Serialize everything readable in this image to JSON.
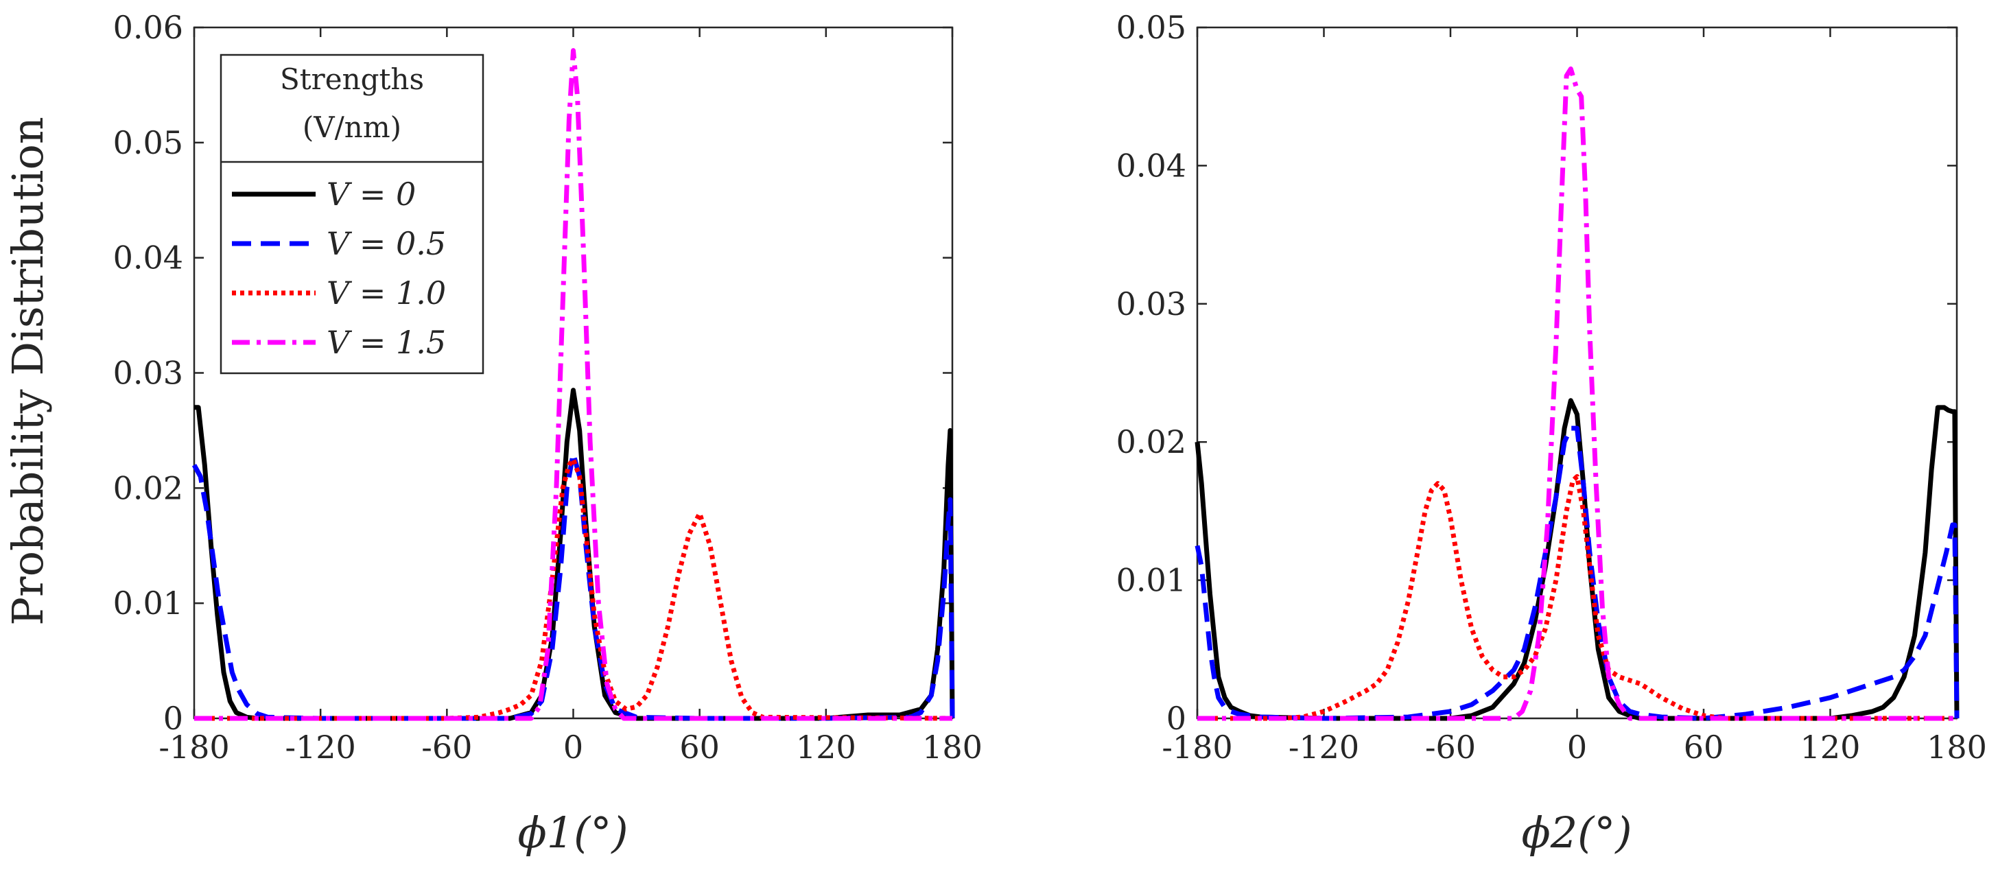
{
  "figure": {
    "ylabel": "Probability Distribution",
    "legend": {
      "title_line1": "Strengths",
      "title_line2": "(V/nm)",
      "entries": [
        {
          "label": "V = 0",
          "color": "#000000",
          "style": "solid"
        },
        {
          "label": "V = 0.5",
          "color": "#0000ff",
          "style": "dashed"
        },
        {
          "label": "V = 1.0",
          "color": "#ff0000",
          "style": "dotted"
        },
        {
          "label": "V = 1.5",
          "color": "#ff00ff",
          "style": "dashdot"
        }
      ]
    }
  },
  "chart_data": [
    {
      "type": "line",
      "title": "",
      "xlabel": "ϕ1(°)",
      "ylabel": "Probability Distribution",
      "xlim": [
        -180,
        180
      ],
      "ylim": [
        0,
        0.06
      ],
      "xticks": [
        -180,
        -120,
        -60,
        0,
        60,
        120,
        180
      ],
      "xtick_labels": [
        "-180",
        "-120",
        "-60",
        "0",
        "60",
        "120",
        "180"
      ],
      "yticks": [
        0,
        0.01,
        0.02,
        0.03,
        0.04,
        0.05,
        0.06
      ],
      "ytick_labels": [
        "0",
        "0.01",
        "0.02",
        "0.03",
        "0.04",
        "0.05",
        "0.06"
      ],
      "series": [
        {
          "name": "V = 0",
          "color": "#000000",
          "style": "solid",
          "x": [
            -180,
            -178,
            -175,
            -172,
            -169,
            -166,
            -163,
            -160,
            -155,
            -150,
            -120,
            -60,
            -30,
            -20,
            -15,
            -10,
            -6,
            -3,
            0,
            3,
            6,
            10,
            15,
            20,
            30,
            60,
            120,
            140,
            155,
            165,
            170,
            173,
            176,
            178,
            179,
            180
          ],
          "y": [
            0.027,
            0.027,
            0.022,
            0.015,
            0.009,
            0.004,
            0.0015,
            0.0005,
            0.0001,
            0,
            0,
            0,
            0,
            0.0005,
            0.002,
            0.007,
            0.016,
            0.024,
            0.0285,
            0.025,
            0.017,
            0.008,
            0.002,
            0.0005,
            0,
            0,
            0,
            0.0003,
            0.0003,
            0.0008,
            0.002,
            0.006,
            0.013,
            0.022,
            0.025,
            0
          ]
        },
        {
          "name": "V = 0.5",
          "color": "#0000ff",
          "style": "dashed",
          "x": [
            -180,
            -177,
            -174,
            -171,
            -168,
            -165,
            -162,
            -159,
            -155,
            -150,
            -145,
            -120,
            -60,
            -30,
            -20,
            -15,
            -10,
            -6,
            -3,
            0,
            3,
            6,
            10,
            15,
            20,
            30,
            60,
            120,
            160,
            165,
            170,
            173,
            176,
            178,
            179,
            180
          ],
          "y": [
            0.022,
            0.021,
            0.018,
            0.014,
            0.01,
            0.007,
            0.004,
            0.0025,
            0.0012,
            0.0004,
            0.0001,
            0,
            0,
            0,
            0.0004,
            0.0015,
            0.006,
            0.013,
            0.02,
            0.023,
            0.021,
            0.015,
            0.008,
            0.003,
            0.0008,
            0.0001,
            0,
            0,
            0.0001,
            0.0005,
            0.002,
            0.005,
            0.011,
            0.017,
            0.019,
            0
          ]
        },
        {
          "name": "V = 1.0",
          "color": "#ff0000",
          "style": "dotted",
          "x": [
            -180,
            -60,
            -45,
            -40,
            -35,
            -30,
            -25,
            -20,
            -15,
            -10,
            -5,
            -2,
            0,
            3,
            6,
            10,
            15,
            20,
            25,
            30,
            35,
            40,
            45,
            50,
            55,
            60,
            65,
            70,
            75,
            80,
            85,
            90,
            180
          ],
          "y": [
            0,
            0,
            0.0001,
            0.0003,
            0.0005,
            0.0008,
            0.0012,
            0.002,
            0.005,
            0.012,
            0.02,
            0.022,
            0.0225,
            0.021,
            0.016,
            0.009,
            0.004,
            0.0015,
            0.0008,
            0.001,
            0.002,
            0.0045,
            0.008,
            0.0125,
            0.016,
            0.0178,
            0.015,
            0.01,
            0.005,
            0.0018,
            0.0005,
            0.0001,
            0
          ]
        },
        {
          "name": "V = 1.5",
          "color": "#ff00ff",
          "style": "dashdot",
          "x": [
            -180,
            -20,
            -16,
            -12,
            -8,
            -5,
            -2,
            0,
            2,
            5,
            8,
            12,
            16,
            20,
            24,
            180
          ],
          "y": [
            0,
            0,
            0.001,
            0.006,
            0.02,
            0.036,
            0.052,
            0.058,
            0.054,
            0.04,
            0.024,
            0.01,
            0.003,
            0.0008,
            0,
            0
          ]
        }
      ]
    },
    {
      "type": "line",
      "title": "",
      "xlabel": "ϕ2(°)",
      "ylabel": "",
      "xlim": [
        -180,
        180
      ],
      "ylim": [
        0,
        0.05
      ],
      "xticks": [
        -180,
        -120,
        -60,
        0,
        60,
        120,
        180
      ],
      "xtick_labels": [
        "-180",
        "-120",
        "-60",
        "0",
        "60",
        "120",
        "180"
      ],
      "yticks": [
        0,
        0.01,
        0.02,
        0.03,
        0.04,
        0.05
      ],
      "ytick_labels": [
        "0",
        "0.01",
        "0.02",
        "0.03",
        "0.04",
        "0.05"
      ],
      "series": [
        {
          "name": "V = 0",
          "color": "#000000",
          "style": "solid",
          "x": [
            -180,
            -178,
            -176,
            -174,
            -172,
            -170,
            -167,
            -164,
            -160,
            -155,
            -150,
            -120,
            -60,
            -50,
            -40,
            -30,
            -25,
            -20,
            -15,
            -10,
            -6,
            -3,
            0,
            3,
            6,
            10,
            15,
            20,
            25,
            30,
            60,
            100,
            120,
            130,
            140,
            145,
            150,
            155,
            160,
            165,
            168,
            171,
            174,
            176,
            178,
            179,
            180
          ],
          "y": [
            0.02,
            0.017,
            0.013,
            0.009,
            0.006,
            0.003,
            0.0015,
            0.0008,
            0.0005,
            0.0002,
            0.0001,
            0,
            0,
            0.0002,
            0.0008,
            0.0025,
            0.004,
            0.007,
            0.011,
            0.016,
            0.021,
            0.023,
            0.022,
            0.017,
            0.011,
            0.005,
            0.0015,
            0.0005,
            0.0002,
            0,
            0,
            0,
            0,
            0.0002,
            0.0005,
            0.0008,
            0.0015,
            0.003,
            0.006,
            0.012,
            0.018,
            0.0225,
            0.0225,
            0.0223,
            0.0222,
            0.0222,
            0
          ]
        },
        {
          "name": "V = 0.5",
          "color": "#0000ff",
          "style": "dashed",
          "x": [
            -180,
            -178,
            -176,
            -174,
            -172,
            -170,
            -167,
            -164,
            -160,
            -155,
            -150,
            -120,
            -80,
            -60,
            -50,
            -40,
            -30,
            -25,
            -20,
            -15,
            -10,
            -6,
            -3,
            0,
            3,
            6,
            10,
            15,
            20,
            25,
            30,
            40,
            60,
            80,
            100,
            120,
            130,
            140,
            150,
            155,
            160,
            165,
            170,
            175,
            178,
            179,
            180
          ],
          "y": [
            0.0125,
            0.011,
            0.008,
            0.005,
            0.003,
            0.0015,
            0.0008,
            0.0005,
            0.0003,
            0.0002,
            0.0001,
            0,
            0.0001,
            0.0005,
            0.001,
            0.002,
            0.0035,
            0.005,
            0.008,
            0.012,
            0.016,
            0.02,
            0.021,
            0.021,
            0.017,
            0.012,
            0.007,
            0.003,
            0.0012,
            0.0005,
            0.0003,
            0.0001,
            0,
            0.0003,
            0.0008,
            0.0015,
            0.002,
            0.0025,
            0.003,
            0.0035,
            0.0045,
            0.006,
            0.009,
            0.012,
            0.014,
            0.014,
            0
          ]
        },
        {
          "name": "V = 1.0",
          "color": "#ff0000",
          "style": "dotted",
          "x": [
            -180,
            -140,
            -130,
            -120,
            -110,
            -100,
            -95,
            -90,
            -85,
            -80,
            -75,
            -72,
            -69,
            -66,
            -63,
            -60,
            -55,
            -50,
            -45,
            -40,
            -35,
            -30,
            -25,
            -20,
            -15,
            -10,
            -5,
            -2,
            0,
            3,
            6,
            10,
            15,
            20,
            30,
            40,
            50,
            60,
            70,
            180
          ],
          "y": [
            0,
            0,
            0.0001,
            0.0005,
            0.0012,
            0.002,
            0.0025,
            0.0035,
            0.0055,
            0.0085,
            0.0125,
            0.015,
            0.0165,
            0.017,
            0.0165,
            0.0145,
            0.01,
            0.0065,
            0.0045,
            0.0035,
            0.003,
            0.003,
            0.0035,
            0.0045,
            0.0065,
            0.01,
            0.015,
            0.0172,
            0.0175,
            0.015,
            0.011,
            0.006,
            0.0035,
            0.003,
            0.0025,
            0.0015,
            0.0007,
            0.0002,
            0,
            0
          ]
        },
        {
          "name": "V = 1.5",
          "color": "#ff00ff",
          "style": "dashdot",
          "x": [
            -180,
            -30,
            -26,
            -22,
            -18,
            -14,
            -10,
            -7,
            -5,
            -3,
            0,
            2,
            4,
            6,
            9,
            12,
            15,
            20,
            25,
            180
          ],
          "y": [
            0,
            0,
            0.0005,
            0.002,
            0.006,
            0.014,
            0.027,
            0.039,
            0.0465,
            0.047,
            0.0455,
            0.045,
            0.038,
            0.028,
            0.017,
            0.008,
            0.003,
            0.001,
            0,
            0
          ]
        }
      ]
    }
  ]
}
